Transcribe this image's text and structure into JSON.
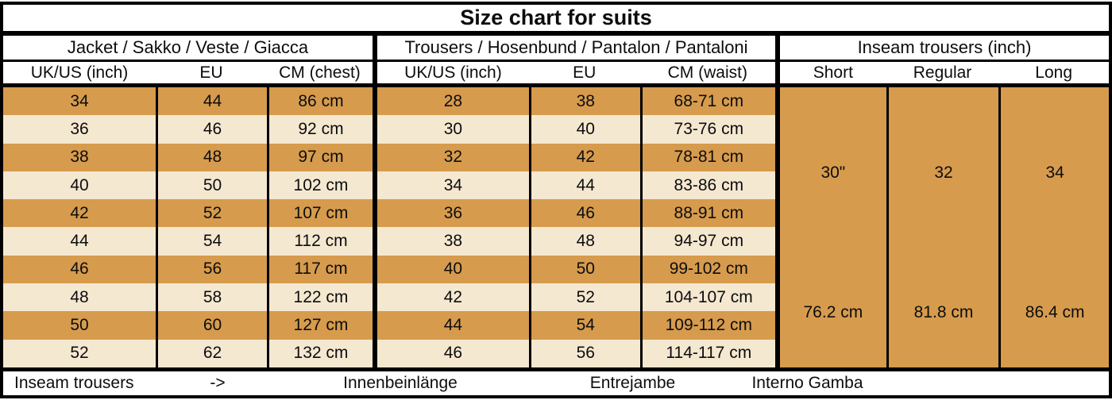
{
  "title": "Size chart for suits",
  "chart_data": [
    {
      "type": "table",
      "title": "Jacket / Sakko / Veste / Giacca",
      "columns": [
        "UK/US (inch)",
        "EU",
        "CM (chest)"
      ],
      "rows": [
        [
          "34",
          "44",
          "86 cm"
        ],
        [
          "36",
          "46",
          "92 cm"
        ],
        [
          "38",
          "48",
          "97 cm"
        ],
        [
          "40",
          "50",
          "102 cm"
        ],
        [
          "42",
          "52",
          "107 cm"
        ],
        [
          "44",
          "54",
          "112 cm"
        ],
        [
          "46",
          "56",
          "117 cm"
        ],
        [
          "48",
          "58",
          "122 cm"
        ],
        [
          "50",
          "60",
          "127 cm"
        ],
        [
          "52",
          "62",
          "132 cm"
        ]
      ]
    },
    {
      "type": "table",
      "title": "Trousers / Hosenbund / Pantalon / Pantaloni",
      "columns": [
        "UK/US (inch)",
        "EU",
        "CM (waist)"
      ],
      "rows": [
        [
          "28",
          "38",
          "68-71 cm"
        ],
        [
          "30",
          "40",
          "73-76 cm"
        ],
        [
          "32",
          "42",
          "78-81 cm"
        ],
        [
          "34",
          "44",
          "83-86 cm"
        ],
        [
          "36",
          "46",
          "88-91 cm"
        ],
        [
          "38",
          "48",
          "94-97 cm"
        ],
        [
          "40",
          "50",
          "99-102 cm"
        ],
        [
          "42",
          "52",
          "104-107 cm"
        ],
        [
          "44",
          "54",
          "109-112 cm"
        ],
        [
          "46",
          "56",
          "114-117 cm"
        ]
      ]
    },
    {
      "type": "table",
      "title": "Inseam trousers (inch)",
      "columns": [
        "Short",
        "Regular",
        "Long"
      ],
      "rows": [
        [
          "30\"",
          "32",
          "34"
        ],
        [
          "76.2 cm",
          "81.8 cm",
          "86.4 cm"
        ]
      ]
    }
  ],
  "footer": {
    "label": "Inseam trousers",
    "arrow": "->",
    "translations": [
      "Innenbeinlänge",
      "Entrejambe",
      "Interno Gamba"
    ]
  },
  "colors": {
    "row_orange": "#D69B4D",
    "row_cream": "#F5E8D1",
    "border": "#000000",
    "header_bg": "#FFFFFF"
  }
}
